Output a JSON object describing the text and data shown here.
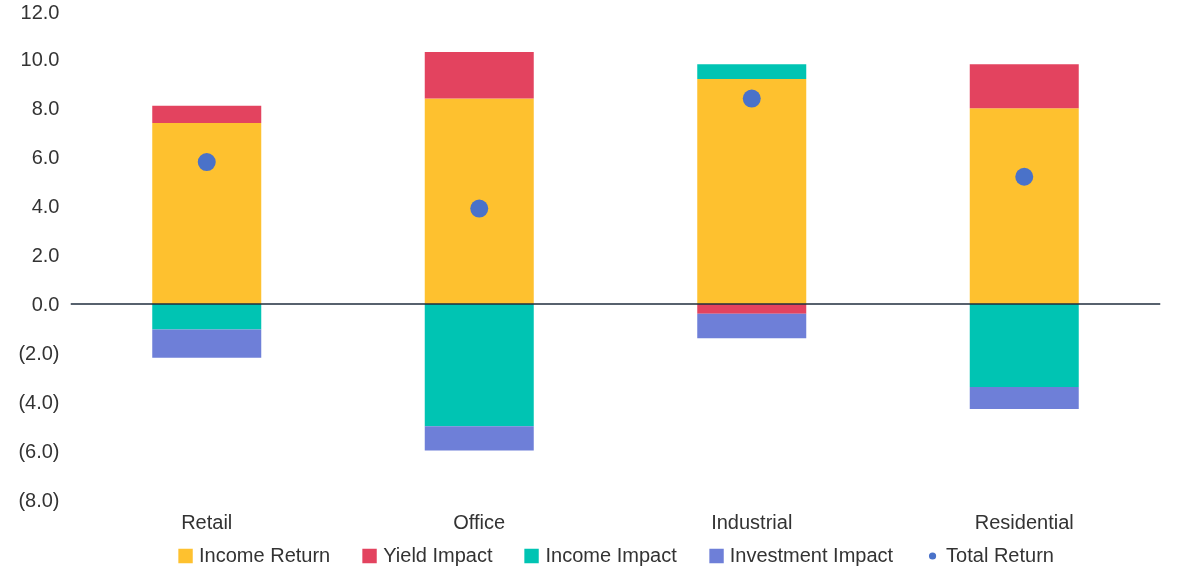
{
  "chart_data": {
    "type": "bar",
    "stacked": true,
    "categories": [
      "Retail",
      "Office",
      "Industrial",
      "Residential"
    ],
    "series": [
      {
        "name": "Income Return",
        "color": "#fec12f",
        "values": [
          7.4,
          8.4,
          9.2,
          8.0
        ]
      },
      {
        "name": "Yield Impact",
        "color": "#e3435f",
        "values": [
          0.7,
          1.9,
          -0.4,
          1.8
        ]
      },
      {
        "name": "Income Impact",
        "color": "#00c4b3",
        "values": [
          -1.05,
          -5.0,
          0.6,
          -3.4
        ]
      },
      {
        "name": "Investment Impact",
        "color": "#6e7fd8",
        "values": [
          -1.15,
          -1.0,
          -1.0,
          -0.9
        ]
      },
      {
        "name": "Total Return",
        "color": "#4a72c9",
        "type": "scatter",
        "marker": "circle",
        "values": [
          5.8,
          3.9,
          8.4,
          5.2
        ]
      }
    ],
    "ylim": [
      -8,
      12
    ],
    "yticks": [
      {
        "value": -8,
        "label": "(8.0)"
      },
      {
        "value": -6,
        "label": "(6.0)"
      },
      {
        "value": -4,
        "label": "(4.0)"
      },
      {
        "value": -2,
        "label": "(2.0)"
      },
      {
        "value": 0,
        "label": "0.0"
      },
      {
        "value": 2,
        "label": "2.0"
      },
      {
        "value": 4,
        "label": "4.0"
      },
      {
        "value": 6,
        "label": "6.0"
      },
      {
        "value": 8,
        "label": "8.0"
      },
      {
        "value": 10,
        "label": "10.0"
      },
      {
        "value": 12,
        "label": "12.0"
      }
    ],
    "ref_lines": [
      {
        "axis": "y",
        "value": 0,
        "color": "#1f2d3d"
      }
    ],
    "legend": "bottom"
  }
}
